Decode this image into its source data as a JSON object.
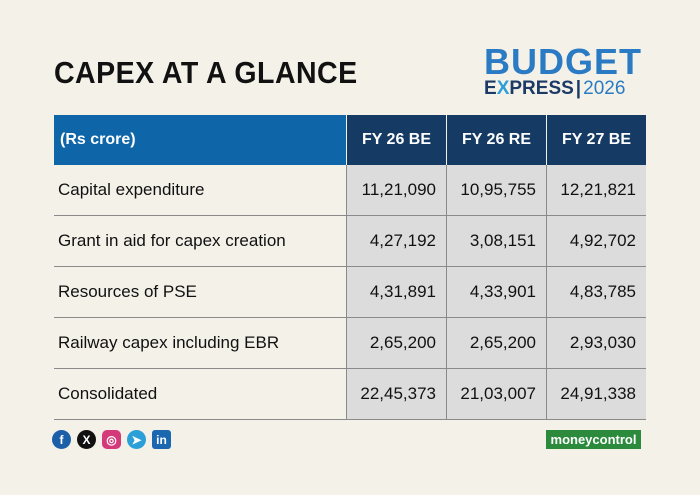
{
  "title": "CAPEX AT A GLANCE",
  "logo": {
    "top": "BUDGET",
    "bottom_left": "E",
    "bottom_x": "X",
    "bottom_right": "PRESS",
    "bar": "|",
    "year": "2026"
  },
  "table": {
    "header": [
      "(Rs crore)",
      "FY 26 BE",
      "FY 26 RE",
      "FY 27 BE"
    ],
    "rows": [
      [
        "Capital expenditure",
        "11,21,090",
        "10,95,755",
        "12,21,821"
      ],
      [
        "Grant in aid for capex creation",
        "4,27,192",
        "3,08,151",
        "4,92,702"
      ],
      [
        "Resources of PSE",
        "4,31,891",
        "4,33,901",
        "4,83,785"
      ],
      [
        "Railway capex including EBR",
        "2,65,200",
        "2,65,200",
        "2,93,030"
      ],
      [
        "Consolidated",
        "22,45,373",
        "21,03,007",
        "24,91,338"
      ]
    ]
  },
  "social": {
    "facebook": "f",
    "x": "X",
    "instagram": "◎",
    "telegram": "➤",
    "linkedin": "in"
  },
  "brand": "moneycontrol",
  "colors": {
    "header_blue": "#0e66a8",
    "header_navy": "#153a64",
    "value_cell": "#dcdcdc",
    "background": "#f4f1e9",
    "brand_green": "#2c8a3d"
  }
}
